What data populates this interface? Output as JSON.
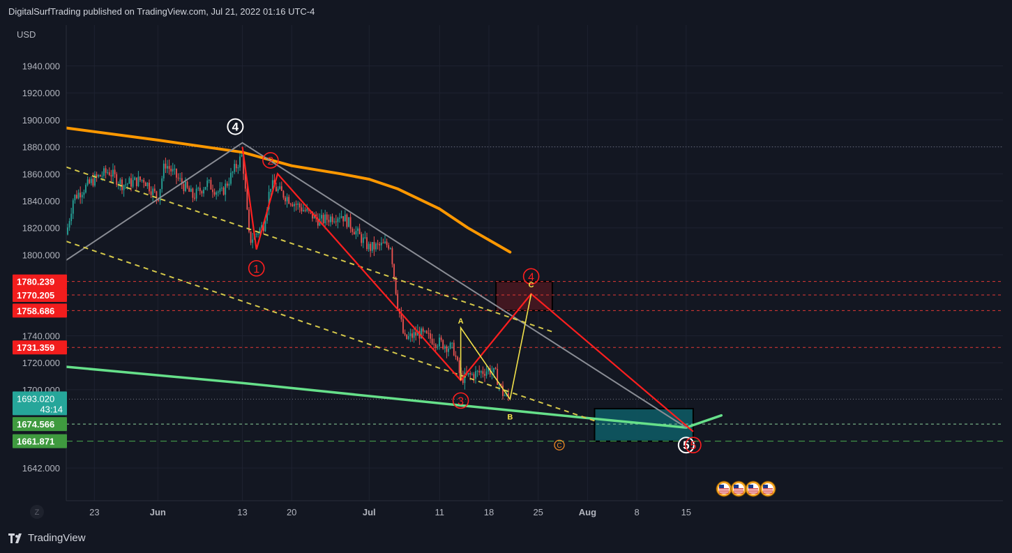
{
  "header": {
    "publish_line": "DigitalSurfTrading published on TradingView.com, Jul 21, 2022 01:16 UTC-4"
  },
  "footer": {
    "logo_text": "TradingView",
    "logo_icon": "tradingview-logo-icon"
  },
  "colors": {
    "background": "#131722",
    "candle_up": "#26a69a",
    "candle_down": "#ef5350",
    "ma_orange": "#ff9800",
    "ma_green": "#66e08a",
    "wave_red": "#ff1f1f",
    "wave_yellow": "#f2e24a",
    "trend_gray": "#8a8d95",
    "box_red": "#4a1720",
    "box_teal": "#0e5963"
  },
  "chart_data": {
    "type": "candlestick",
    "symbol_currency": "USD",
    "scale_label": "Z",
    "ylim": [
      1625,
      1965
    ],
    "y_ticks": [
      1940,
      1920,
      1900,
      1880,
      1860,
      1840,
      1820,
      1800,
      1740,
      1720,
      1700,
      1642
    ],
    "y_tick_labels": [
      "1940.000",
      "1920.000",
      "1900.000",
      "1880.000",
      "1860.000",
      "1840.000",
      "1820.000",
      "1800.000",
      "1740.000",
      "1720.000",
      "1700.000",
      "1642.000"
    ],
    "x_start": "2022-05-19",
    "x_end": "2022-08-16",
    "x_ticks": [
      {
        "date": "2022-05-23",
        "label": "23"
      },
      {
        "date": "2022-06-01",
        "label": "Jun"
      },
      {
        "date": "2022-06-13",
        "label": "13"
      },
      {
        "date": "2022-06-20",
        "label": "20"
      },
      {
        "date": "2022-07-01",
        "label": "Jul"
      },
      {
        "date": "2022-07-11",
        "label": "11"
      },
      {
        "date": "2022-07-18",
        "label": "18"
      },
      {
        "date": "2022-07-25",
        "label": "25"
      },
      {
        "date": "2022-08-01",
        "label": "Aug"
      },
      {
        "date": "2022-08-08",
        "label": "8"
      },
      {
        "date": "2022-08-15",
        "label": "15"
      }
    ],
    "price_path": [
      {
        "date": "2022-05-19",
        "close": 1815
      },
      {
        "date": "2022-05-20",
        "close": 1842
      },
      {
        "date": "2022-05-23",
        "close": 1856
      },
      {
        "date": "2022-05-25",
        "close": 1862
      },
      {
        "date": "2022-05-27",
        "close": 1852
      },
      {
        "date": "2022-05-30",
        "close": 1856
      },
      {
        "date": "2022-06-01",
        "close": 1842
      },
      {
        "date": "2022-06-02",
        "close": 1868
      },
      {
        "date": "2022-06-06",
        "close": 1843
      },
      {
        "date": "2022-06-08",
        "close": 1853
      },
      {
        "date": "2022-06-10",
        "close": 1845
      },
      {
        "date": "2022-06-13",
        "close": 1874
      },
      {
        "date": "2022-06-14",
        "close": 1810
      },
      {
        "date": "2022-06-16",
        "close": 1822
      },
      {
        "date": "2022-06-17",
        "close": 1852
      },
      {
        "date": "2022-06-21",
        "close": 1836
      },
      {
        "date": "2022-06-24",
        "close": 1825
      },
      {
        "date": "2022-06-27",
        "close": 1830
      },
      {
        "date": "2022-06-29",
        "close": 1818
      },
      {
        "date": "2022-07-01",
        "close": 1805
      },
      {
        "date": "2022-07-04",
        "close": 1808
      },
      {
        "date": "2022-07-05",
        "close": 1765
      },
      {
        "date": "2022-07-06",
        "close": 1737
      },
      {
        "date": "2022-07-08",
        "close": 1742
      },
      {
        "date": "2022-07-11",
        "close": 1735
      },
      {
        "date": "2022-07-13",
        "close": 1730
      },
      {
        "date": "2022-07-14",
        "close": 1708
      },
      {
        "date": "2022-07-15",
        "close": 1710
      },
      {
        "date": "2022-07-18",
        "close": 1715
      },
      {
        "date": "2022-07-19",
        "close": 1711
      },
      {
        "date": "2022-07-20",
        "close": 1697
      },
      {
        "date": "2022-07-21",
        "close": 1693
      }
    ],
    "moving_averages": [
      {
        "color": "orange",
        "points": [
          [
            "2022-05-19",
            1894
          ],
          [
            "2022-06-01",
            1885
          ],
          [
            "2022-06-13",
            1876
          ],
          [
            "2022-06-20",
            1866
          ],
          [
            "2022-06-27",
            1860
          ],
          [
            "2022-07-01",
            1856
          ],
          [
            "2022-07-05",
            1849
          ],
          [
            "2022-07-11",
            1834
          ],
          [
            "2022-07-15",
            1820
          ],
          [
            "2022-07-21",
            1802
          ]
        ]
      },
      {
        "color": "green",
        "points": [
          [
            "2022-05-19",
            1717
          ],
          [
            "2022-06-13",
            1705
          ],
          [
            "2022-07-11",
            1690
          ],
          [
            "2022-08-01",
            1679
          ],
          [
            "2022-08-15",
            1672
          ],
          [
            "2022-08-20",
            1681
          ]
        ]
      }
    ],
    "trend_lines": [
      {
        "style": "gray",
        "points": [
          [
            "2022-05-19",
            1796
          ],
          [
            "2022-06-13",
            1883
          ],
          [
            "2022-08-15",
            1672
          ]
        ]
      },
      {
        "style": "yellow-dashed",
        "points": [
          [
            "2022-05-19",
            1865
          ],
          [
            "2022-07-27",
            1743
          ]
        ]
      },
      {
        "style": "yellow-dashed",
        "points": [
          [
            "2022-05-19",
            1810
          ],
          [
            "2022-08-02",
            1677
          ]
        ]
      }
    ],
    "wave_paths": [
      {
        "color": "red",
        "points": [
          [
            "2022-06-13",
            1880
          ],
          [
            "2022-06-15",
            1804
          ],
          [
            "2022-06-18",
            1860
          ],
          [
            "2022-07-14",
            1707
          ],
          [
            "2022-07-24",
            1771
          ],
          [
            "2022-08-16",
            1669
          ]
        ]
      },
      {
        "color": "yellow",
        "points": [
          [
            "2022-07-14",
            1707
          ],
          [
            "2022-07-14",
            1746
          ],
          [
            "2022-07-21",
            1693
          ],
          [
            "2022-07-24",
            1771
          ]
        ]
      }
    ],
    "annotations": [
      {
        "label": "4",
        "style": "white-circle",
        "date": "2022-06-12",
        "price": 1895
      },
      {
        "label": "2",
        "style": "red-circle",
        "date": "2022-06-17",
        "price": 1870
      },
      {
        "label": "1",
        "style": "red-circle",
        "date": "2022-06-15",
        "price": 1790
      },
      {
        "label": "3",
        "style": "red-circle",
        "date": "2022-07-14",
        "price": 1692
      },
      {
        "label": "4",
        "style": "red-circle",
        "date": "2022-07-24",
        "price": 1784
      },
      {
        "label": "5",
        "style": "white-circle",
        "date": "2022-08-15",
        "price": 1659
      },
      {
        "label": "5",
        "style": "red-circle",
        "date": "2022-08-16",
        "price": 1659
      },
      {
        "label": "C",
        "style": "orange-circle-small",
        "date": "2022-07-28",
        "price": 1659
      },
      {
        "label": "A",
        "style": "yellow-text",
        "date": "2022-07-14",
        "price": 1751
      },
      {
        "label": "B",
        "style": "yellow-text",
        "date": "2022-07-21",
        "price": 1680
      },
      {
        "label": "C",
        "style": "yellow-text",
        "date": "2022-07-24",
        "price": 1778
      }
    ],
    "horizontal_levels": [
      {
        "value": 1780.239,
        "label": "1780.239",
        "color": "red"
      },
      {
        "value": 1770.205,
        "label": "1770.205",
        "color": "red"
      },
      {
        "value": 1758.686,
        "label": "1758.686",
        "color": "red"
      },
      {
        "value": 1731.359,
        "label": "1731.359",
        "color": "red"
      },
      {
        "value": 1674.566,
        "label": "1674.566",
        "color": "green"
      },
      {
        "value": 1661.871,
        "label": "1661.871",
        "color": "green"
      }
    ],
    "dotted_levels": [
      1880,
      1693.02
    ],
    "current_price": {
      "value": 1693.02,
      "label": "1693.020",
      "countdown": "43:14"
    },
    "zones": [
      {
        "color": "red",
        "date_from": "2022-07-19",
        "date_to": "2022-07-27",
        "price_low": 1758.686,
        "price_high": 1780.239
      },
      {
        "color": "teal",
        "date_from": "2022-08-02",
        "date_to": "2022-08-16",
        "price_low": 1661.871,
        "price_high": 1686
      }
    ],
    "event_icons": {
      "icon": "us-flag-icon",
      "dates": [
        "2022-07-25",
        "2022-07-26",
        "2022-07-27",
        "2022-07-28"
      ]
    }
  }
}
